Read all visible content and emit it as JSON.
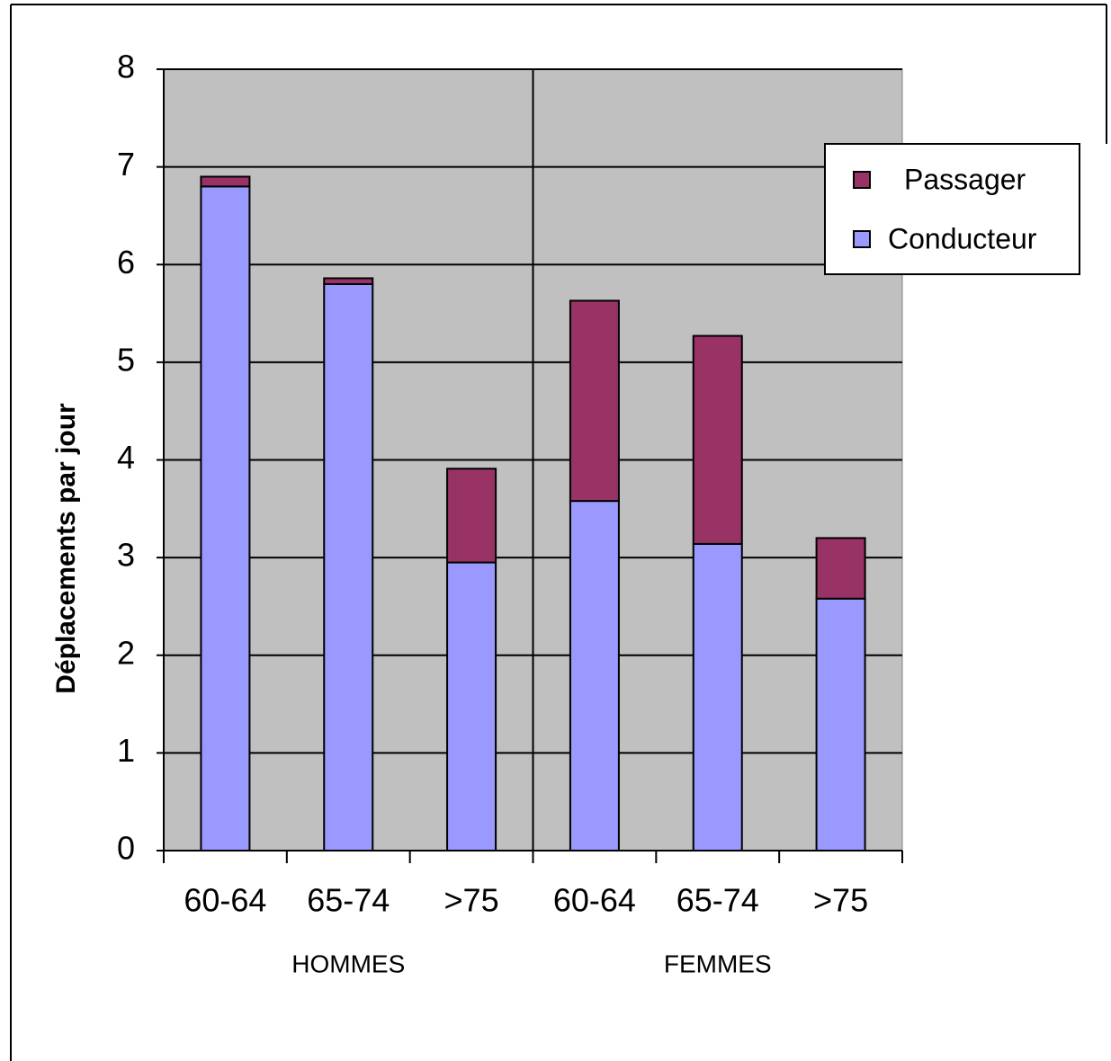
{
  "chart_data": {
    "type": "stacked_bar",
    "y_label": "Déplacements par jour",
    "categories": [
      "60-64",
      "65-74",
      ">75",
      "60-64",
      "65-74",
      ">75"
    ],
    "groups": [
      "HOMMES",
      "FEMMES"
    ],
    "series": [
      {
        "name": "Conducteur",
        "color": "#9999ff",
        "values": [
          6.8,
          5.8,
          2.95,
          3.58,
          3.14,
          2.58
        ]
      },
      {
        "name": "Passager",
        "color": "#993366",
        "values": [
          0.1,
          0.06,
          0.96,
          2.05,
          2.13,
          0.62
        ]
      }
    ],
    "ylim": [
      0,
      8
    ],
    "yticks": [
      0,
      1,
      2,
      3,
      4,
      5,
      6,
      7,
      8
    ],
    "grid": true,
    "legend": "upper right"
  }
}
